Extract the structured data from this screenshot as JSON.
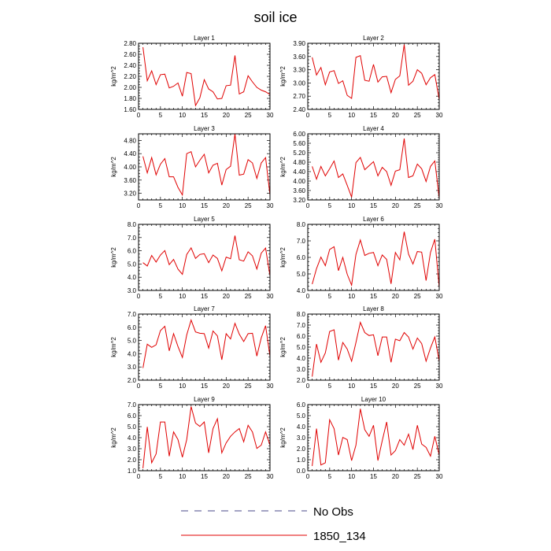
{
  "figure": {
    "title": "soil ice",
    "legend": [
      {
        "label": "No Obs",
        "color": "#4a4a8a",
        "style": "dashed"
      },
      {
        "label": "1850_134",
        "color": "#e00000",
        "style": "solid"
      }
    ]
  },
  "chart_data": [
    {
      "type": "line",
      "title": "Layer 1",
      "ylabel": "kg/m^2",
      "xlim": [
        0,
        30
      ],
      "xticks": [
        0,
        5,
        10,
        15,
        20,
        25,
        30
      ],
      "ylim": [
        1.6,
        2.8
      ],
      "yticks": [
        "1.60",
        "1.80",
        "2.00",
        "2.20",
        "2.40",
        "2.60",
        "2.80"
      ],
      "series": [
        {
          "name": "1850_134",
          "color": "#e00000",
          "x": [
            1,
            2,
            3,
            4,
            5,
            6,
            7,
            8,
            9,
            10,
            11,
            12,
            13,
            14,
            15,
            16,
            17,
            18,
            19,
            20,
            21,
            22,
            23,
            24,
            25,
            26,
            27,
            28,
            29,
            30
          ],
          "y": [
            2.73,
            2.12,
            2.3,
            2.05,
            2.23,
            2.24,
            1.99,
            2.02,
            2.08,
            1.84,
            2.27,
            2.25,
            1.67,
            1.81,
            2.14,
            1.97,
            1.92,
            1.79,
            1.8,
            2.03,
            2.04,
            2.58,
            1.88,
            1.92,
            2.21,
            2.1,
            2.0,
            1.95,
            1.92,
            1.87
          ]
        }
      ]
    },
    {
      "type": "line",
      "title": "Layer 2",
      "ylabel": "kg/m^2",
      "xlim": [
        0,
        30
      ],
      "xticks": [
        0,
        5,
        10,
        15,
        20,
        25,
        30
      ],
      "ylim": [
        2.4,
        3.9
      ],
      "yticks": [
        "2.40",
        "2.70",
        "3.00",
        "3.30",
        "3.60",
        "3.90"
      ],
      "series": [
        {
          "name": "1850_134",
          "color": "#e00000",
          "x": [
            1,
            2,
            3,
            4,
            5,
            6,
            7,
            8,
            9,
            10,
            11,
            12,
            13,
            14,
            15,
            16,
            17,
            18,
            19,
            20,
            21,
            22,
            23,
            24,
            25,
            26,
            27,
            28,
            29,
            30
          ],
          "y": [
            3.58,
            3.18,
            3.35,
            2.96,
            3.25,
            3.28,
            2.99,
            3.05,
            2.72,
            2.65,
            3.58,
            3.62,
            3.06,
            3.04,
            3.42,
            3.02,
            3.14,
            3.15,
            2.78,
            3.08,
            3.16,
            3.87,
            2.95,
            3.04,
            3.3,
            3.22,
            2.96,
            3.12,
            3.19,
            2.62
          ]
        }
      ]
    },
    {
      "type": "line",
      "title": "Layer 3",
      "ylabel": "kg/m^2",
      "xlim": [
        0,
        30
      ],
      "xticks": [
        0,
        5,
        10,
        15,
        20,
        25,
        30
      ],
      "ylim": [
        3.0,
        5.0
      ],
      "yticks": [
        "3.20",
        "3.60",
        "4.00",
        "4.40",
        "4.80"
      ],
      "series": [
        {
          "name": "1850_134",
          "color": "#e00000",
          "x": [
            1,
            2,
            3,
            4,
            5,
            6,
            7,
            8,
            9,
            10,
            11,
            12,
            13,
            14,
            15,
            16,
            17,
            18,
            19,
            20,
            21,
            22,
            23,
            24,
            25,
            26,
            27,
            28,
            29,
            30
          ],
          "y": [
            4.32,
            3.82,
            4.28,
            3.76,
            4.08,
            4.25,
            3.7,
            3.7,
            3.38,
            3.15,
            4.4,
            4.46,
            4.0,
            4.2,
            4.38,
            3.82,
            4.05,
            4.11,
            3.45,
            3.92,
            4.02,
            5.0,
            3.75,
            3.78,
            4.22,
            4.12,
            3.65,
            4.12,
            4.28,
            3.15
          ]
        }
      ]
    },
    {
      "type": "line",
      "title": "Layer 4",
      "ylabel": "kg/m^2",
      "xlim": [
        0,
        30
      ],
      "xticks": [
        0,
        5,
        10,
        15,
        20,
        25,
        30
      ],
      "ylim": [
        3.2,
        6.0
      ],
      "yticks": [
        "3.20",
        "3.60",
        "4.00",
        "4.40",
        "4.80",
        "5.20",
        "5.60",
        "6.00"
      ],
      "series": [
        {
          "name": "1850_134",
          "color": "#e00000",
          "x": [
            1,
            2,
            3,
            4,
            5,
            6,
            7,
            8,
            9,
            10,
            11,
            12,
            13,
            14,
            15,
            16,
            17,
            18,
            19,
            20,
            21,
            22,
            23,
            24,
            25,
            26,
            27,
            28,
            29,
            30
          ],
          "y": [
            4.62,
            4.08,
            4.62,
            4.22,
            4.52,
            4.85,
            4.15,
            4.3,
            3.82,
            3.32,
            4.78,
            5.0,
            4.48,
            4.65,
            4.82,
            4.22,
            4.58,
            4.4,
            3.82,
            4.42,
            4.48,
            5.8,
            4.15,
            4.22,
            4.72,
            4.52,
            3.98,
            4.62,
            4.85,
            3.28
          ]
        }
      ]
    },
    {
      "type": "line",
      "title": "Layer 5",
      "ylabel": "kg/m^2",
      "xlim": [
        0,
        30
      ],
      "xticks": [
        0,
        5,
        10,
        15,
        20,
        25,
        30
      ],
      "ylim": [
        3.0,
        8.0
      ],
      "yticks": [
        "3.0",
        "4.0",
        "5.0",
        "6.0",
        "7.0",
        "8.0"
      ],
      "series": [
        {
          "name": "1850_134",
          "color": "#e00000",
          "x": [
            1,
            2,
            3,
            4,
            5,
            6,
            7,
            8,
            9,
            10,
            11,
            12,
            13,
            14,
            15,
            16,
            17,
            18,
            19,
            20,
            21,
            22,
            23,
            24,
            25,
            26,
            27,
            28,
            29,
            30
          ],
          "y": [
            5.1,
            4.85,
            5.65,
            5.15,
            5.68,
            6.02,
            4.95,
            5.35,
            4.62,
            4.22,
            5.72,
            6.22,
            5.42,
            5.72,
            5.78,
            5.1,
            5.68,
            5.42,
            4.48,
            5.52,
            5.4,
            7.15,
            5.32,
            5.22,
            5.92,
            5.62,
            4.62,
            5.82,
            6.2,
            4.1
          ]
        }
      ]
    },
    {
      "type": "line",
      "title": "Layer 6",
      "ylabel": "kg/m^2",
      "xlim": [
        0,
        30
      ],
      "xticks": [
        0,
        5,
        10,
        15,
        20,
        25,
        30
      ],
      "ylim": [
        4.0,
        8.0
      ],
      "yticks": [
        "4.0",
        "5.0",
        "6.0",
        "7.0",
        "8.0"
      ],
      "series": [
        {
          "name": "1850_134",
          "color": "#e00000",
          "x": [
            1,
            2,
            3,
            4,
            5,
            6,
            7,
            8,
            9,
            10,
            11,
            12,
            13,
            14,
            15,
            16,
            17,
            18,
            19,
            20,
            21,
            22,
            23,
            24,
            25,
            26,
            27,
            28,
            29,
            30
          ],
          "y": [
            4.38,
            5.32,
            6.02,
            5.5,
            6.48,
            6.65,
            5.2,
            6.0,
            4.98,
            4.32,
            6.18,
            7.05,
            6.12,
            6.25,
            6.3,
            5.5,
            6.15,
            5.88,
            4.4,
            6.3,
            5.85,
            7.55,
            6.2,
            5.6,
            6.35,
            6.32,
            4.6,
            6.3,
            7.1,
            4.18
          ]
        }
      ]
    },
    {
      "type": "line",
      "title": "Layer 7",
      "ylabel": "kg/m^2",
      "xlim": [
        0,
        30
      ],
      "xticks": [
        0,
        5,
        10,
        15,
        20,
        25,
        30
      ],
      "ylim": [
        2.0,
        7.0
      ],
      "yticks": [
        "2.0",
        "3.0",
        "4.0",
        "5.0",
        "6.0",
        "7.0"
      ],
      "series": [
        {
          "name": "1850_134",
          "color": "#e00000",
          "x": [
            1,
            2,
            3,
            4,
            5,
            6,
            7,
            8,
            9,
            10,
            11,
            12,
            13,
            14,
            15,
            16,
            17,
            18,
            19,
            20,
            21,
            22,
            23,
            24,
            25,
            26,
            27,
            28,
            29,
            30
          ],
          "y": [
            2.92,
            4.72,
            4.48,
            4.68,
            5.75,
            6.08,
            4.22,
            5.52,
            4.55,
            3.72,
            5.42,
            6.55,
            5.65,
            5.55,
            5.52,
            4.42,
            5.72,
            5.35,
            3.55,
            5.52,
            5.12,
            6.3,
            5.48,
            4.92,
            5.52,
            5.55,
            3.82,
            5.2,
            6.12,
            3.8
          ]
        }
      ]
    },
    {
      "type": "line",
      "title": "Layer 8",
      "ylabel": "kg/m^2",
      "xlim": [
        0,
        30
      ],
      "xticks": [
        0,
        5,
        10,
        15,
        20,
        25,
        30
      ],
      "ylim": [
        2.0,
        8.0
      ],
      "yticks": [
        "2.0",
        "3.0",
        "4.0",
        "5.0",
        "6.0",
        "7.0",
        "8.0"
      ],
      "series": [
        {
          "name": "1850_134",
          "color": "#e00000",
          "x": [
            1,
            2,
            3,
            4,
            5,
            6,
            7,
            8,
            9,
            10,
            11,
            12,
            13,
            14,
            15,
            16,
            17,
            18,
            19,
            20,
            21,
            22,
            23,
            24,
            25,
            26,
            27,
            28,
            29,
            30
          ],
          "y": [
            2.32,
            5.28,
            3.62,
            4.48,
            6.42,
            6.58,
            3.82,
            5.42,
            4.82,
            3.72,
            5.42,
            7.25,
            6.32,
            6.05,
            6.12,
            4.22,
            5.92,
            5.92,
            3.62,
            5.72,
            5.58,
            6.32,
            5.92,
            4.82,
            5.82,
            5.32,
            3.72,
            4.92,
            5.92,
            3.72
          ]
        }
      ]
    },
    {
      "type": "line",
      "title": "Layer 9",
      "ylabel": "kg/m^2",
      "xlim": [
        0,
        30
      ],
      "xticks": [
        0,
        5,
        10,
        15,
        20,
        25,
        30
      ],
      "ylim": [
        1.0,
        7.0
      ],
      "yticks": [
        "1.0",
        "2.0",
        "3.0",
        "4.0",
        "5.0",
        "6.0",
        "7.0"
      ],
      "series": [
        {
          "name": "1850_134",
          "color": "#e00000",
          "x": [
            1,
            2,
            3,
            4,
            5,
            6,
            7,
            8,
            9,
            10,
            11,
            12,
            13,
            14,
            15,
            16,
            17,
            18,
            19,
            20,
            21,
            22,
            23,
            24,
            25,
            26,
            27,
            28,
            29,
            30
          ],
          "y": [
            1.22,
            4.98,
            1.72,
            2.52,
            5.42,
            5.42,
            2.32,
            4.52,
            3.82,
            2.22,
            3.82,
            6.82,
            5.32,
            5.02,
            5.42,
            2.62,
            4.82,
            5.72,
            2.62,
            3.52,
            4.12,
            4.52,
            4.82,
            3.62,
            5.12,
            4.52,
            3.02,
            3.32,
            4.52,
            3.32
          ]
        }
      ]
    },
    {
      "type": "line",
      "title": "Layer 10",
      "ylabel": "kg/m^2",
      "xlim": [
        0,
        30
      ],
      "xticks": [
        0,
        5,
        10,
        15,
        20,
        25,
        30
      ],
      "ylim": [
        0.0,
        6.0
      ],
      "yticks": [
        "0.0",
        "1.0",
        "2.0",
        "3.0",
        "4.0",
        "5.0",
        "6.0"
      ],
      "series": [
        {
          "name": "1850_134",
          "color": "#e00000",
          "x": [
            1,
            2,
            3,
            4,
            5,
            6,
            7,
            8,
            9,
            10,
            11,
            12,
            13,
            14,
            15,
            16,
            17,
            18,
            19,
            20,
            21,
            22,
            23,
            24,
            25,
            26,
            27,
            28,
            29,
            30
          ],
          "y": [
            0.42,
            3.82,
            0.52,
            0.72,
            4.62,
            3.82,
            1.42,
            3.02,
            2.82,
            0.92,
            2.32,
            5.62,
            3.72,
            3.12,
            4.12,
            0.92,
            2.72,
            4.42,
            1.42,
            1.82,
            2.82,
            2.32,
            3.32,
            1.92,
            4.12,
            2.42,
            2.12,
            1.32,
            3.12,
            1.42
          ]
        }
      ]
    }
  ]
}
